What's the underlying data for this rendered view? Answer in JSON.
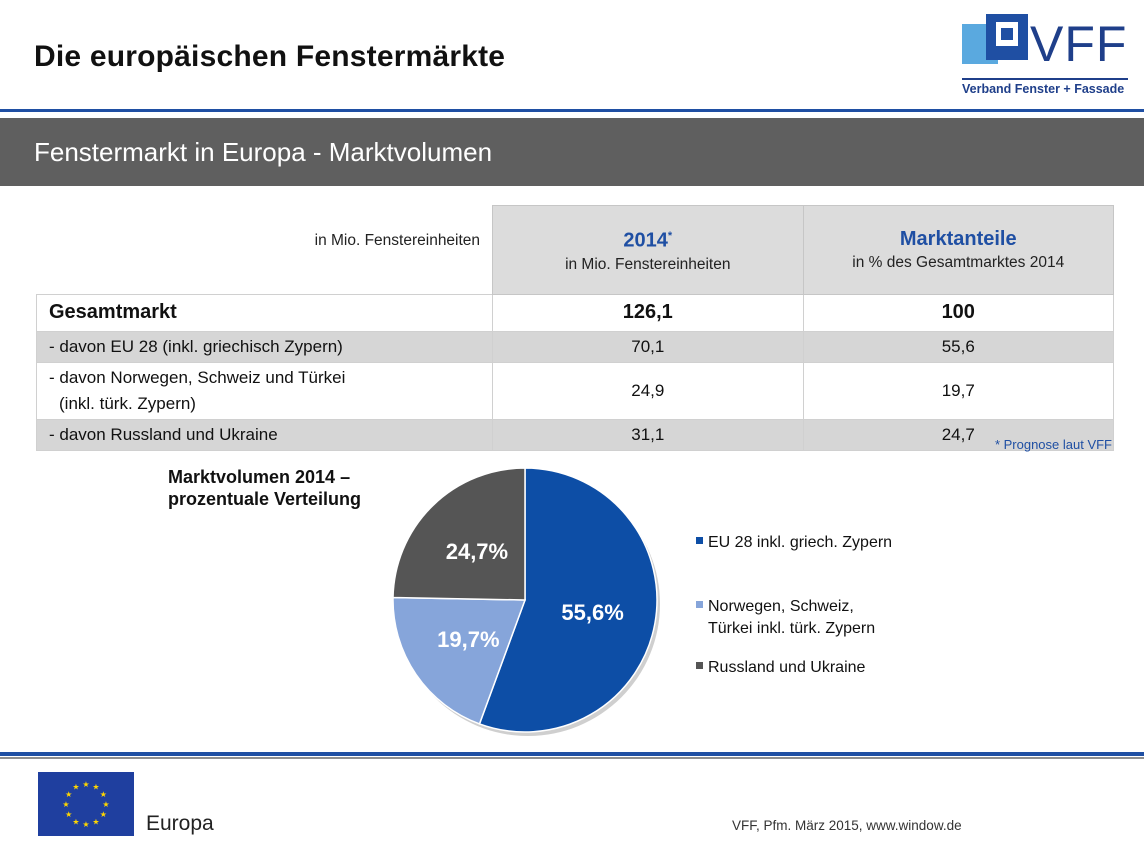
{
  "header": {
    "title": "Die europäischen Fenstermärkte",
    "logo_text": "VFF",
    "logo_subtitle": "Verband Fenster + Fassade"
  },
  "band": {
    "title": "Fenstermarkt in Europa - Marktvolumen"
  },
  "table": {
    "unit_label": "in Mio. Fenstereinheiten",
    "col1": {
      "title": "2014",
      "marker": "*",
      "subtitle": "in Mio. Fenstereinheiten"
    },
    "col2": {
      "title": "Marktanteile",
      "subtitle": "in % des Gesamtmarktes 2014"
    },
    "rows": [
      {
        "label": "Gesamtmarkt",
        "value": "126,1",
        "share": "100"
      },
      {
        "label": "- davon EU 28 (inkl. griechisch Zypern)",
        "value": "70,1",
        "share": "55,6"
      },
      {
        "label": "- davon Norwegen, Schweiz und Türkei",
        "label2": "(inkl. türk. Zypern)",
        "value": "24,9",
        "share": "19,7"
      },
      {
        "label": "- davon Russland und Ukraine",
        "value": "31,1",
        "share": "24,7"
      }
    ],
    "footnote": "* Prognose laut VFF"
  },
  "chart_data": {
    "type": "pie",
    "title": "Marktvolumen 2014 – prozentuale Verteilung",
    "title_lines": [
      "Marktvolumen 2014 –",
      "prozentuale Verteilung"
    ],
    "slices": [
      {
        "label": "EU 28 inkl. griech. Zypern",
        "label_lines": [
          "EU 28 inkl. griech. Zypern"
        ],
        "value": 55.6,
        "display": "55,6%",
        "color": "#0d4ea6"
      },
      {
        "label": "Norwegen, Schweiz, Türkei inkl. türk. Zypern",
        "label_lines": [
          "Norwegen, Schweiz,",
          "Türkei inkl. türk. Zypern"
        ],
        "value": 19.7,
        "display": "19,7%",
        "color": "#86a5da"
      },
      {
        "label": "Russland und Ukraine",
        "label_lines": [
          "Russland und Ukraine"
        ],
        "value": 24.7,
        "display": "24,7%",
        "color": "#555555"
      }
    ],
    "legend_position": "right"
  },
  "footer": {
    "region": "Europa",
    "credit": "VFF, Pfm. März 2015, www.window.de",
    "flag_color": "#1f3f9f",
    "star_color": "#ffd700"
  }
}
